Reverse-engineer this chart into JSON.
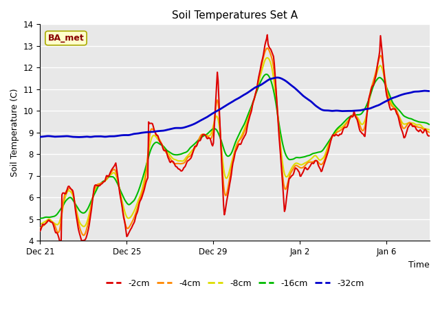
{
  "title": "Soil Temperatures Set A",
  "xlabel": "Time",
  "ylabel": "Soil Temperature (C)",
  "ylim": [
    4.0,
    14.0
  ],
  "yticks": [
    4.0,
    5.0,
    6.0,
    7.0,
    8.0,
    9.0,
    10.0,
    11.0,
    12.0,
    13.0,
    14.0
  ],
  "plot_bg_color": "#e8e8e8",
  "annotation_text": "BA_met",
  "annotation_bg": "#ffffcc",
  "annotation_border": "#aaaa00",
  "annotation_fg": "#880000",
  "legend_entries": [
    "-2cm",
    "-4cm",
    "-8cm",
    "-16cm",
    "-32cm"
  ],
  "line_colors": [
    "#dd0000",
    "#ff8800",
    "#dddd00",
    "#00bb00",
    "#0000cc"
  ],
  "line_widths": [
    1.5,
    1.5,
    1.5,
    1.5,
    2.0
  ],
  "xtick_labels": [
    "Dec 21",
    "Dec 25",
    "Dec 29",
    "Jan 2",
    "Jan 6"
  ],
  "xtick_positions": [
    0,
    4,
    8,
    12,
    16
  ]
}
